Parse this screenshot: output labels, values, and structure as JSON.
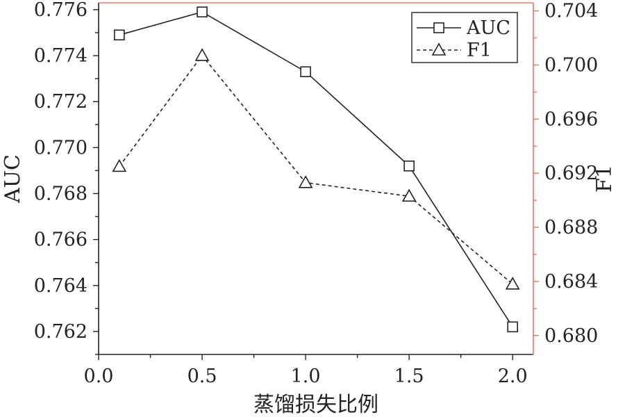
{
  "chart_data": {
    "type": "line",
    "xlabel": "蒸馏损失比例",
    "ylabel_left": "AUC",
    "ylabel_right": "F1",
    "x": [
      0.1,
      0.5,
      1.0,
      1.5,
      2.0
    ],
    "xlim": [
      0.0,
      2.1
    ],
    "xticks": [
      0.0,
      0.5,
      1.0,
      1.5,
      2.0
    ],
    "xtick_labels": [
      "0.0",
      "0.5",
      "1.0",
      "1.5",
      "2.0"
    ],
    "ylim_left": [
      0.761,
      0.7763
    ],
    "yticks_left": [
      0.762,
      0.764,
      0.766,
      0.768,
      0.77,
      0.772,
      0.774,
      0.776
    ],
    "ytick_labels_left": [
      "0.762",
      "0.764",
      "0.766",
      "0.768",
      "0.770",
      "0.772",
      "0.774",
      "0.776"
    ],
    "ylim_right": [
      0.6786,
      0.7046
    ],
    "yticks_right": [
      0.68,
      0.684,
      0.688,
      0.692,
      0.696,
      0.7,
      0.704
    ],
    "ytick_labels_right": [
      "0.680",
      "0.684",
      "0.688",
      "0.692",
      "0.696",
      "0.700",
      "0.704"
    ],
    "series": [
      {
        "name": "AUC",
        "axis": "left",
        "marker": "square",
        "line": "solid",
        "values": [
          0.7749,
          0.7759,
          0.7733,
          0.7692,
          0.7622
        ]
      },
      {
        "name": "F1",
        "axis": "right",
        "marker": "triangle",
        "line": "dashed",
        "values": [
          0.6925,
          0.7007,
          0.6913,
          0.6903,
          0.6838
        ]
      }
    ],
    "legend_position": "top-right",
    "grid": false,
    "colors": {
      "lines": "#222222",
      "frame_right_top": "#e07a6a",
      "axis": "#222222"
    }
  }
}
